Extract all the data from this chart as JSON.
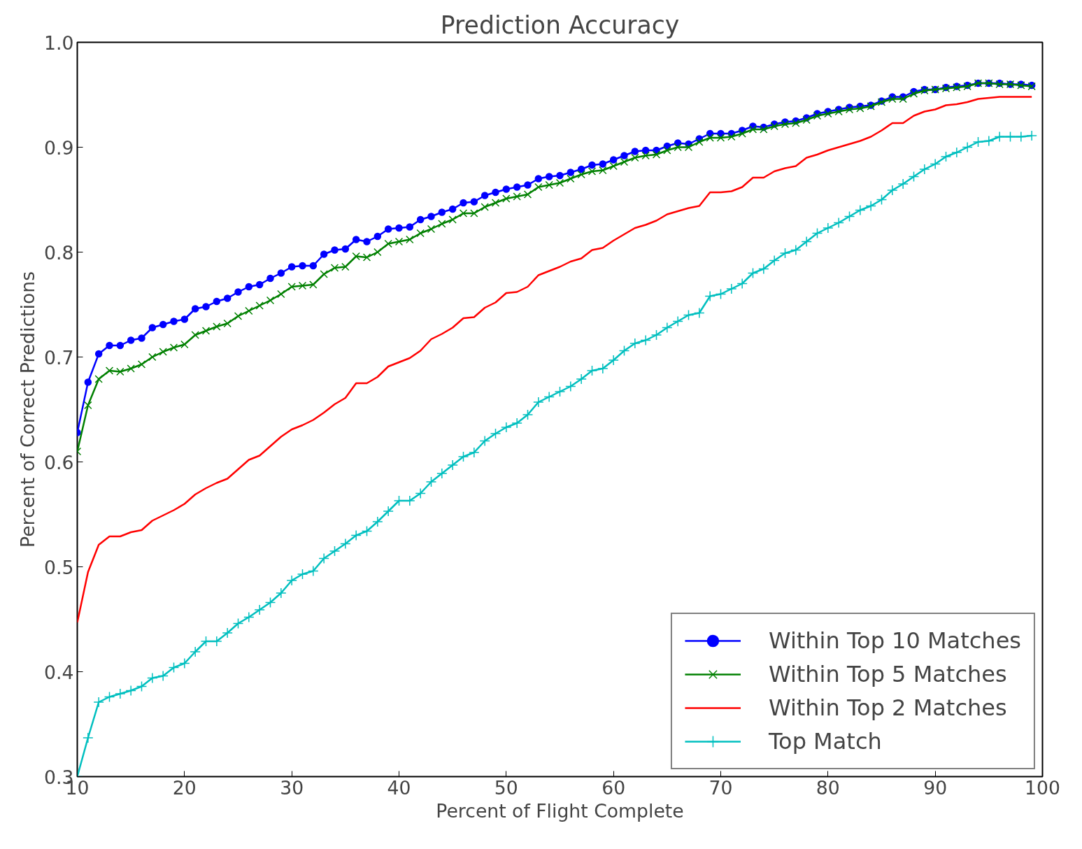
{
  "chart_data": {
    "type": "line",
    "title": "Prediction Accuracy",
    "xlabel": "Percent of Flight Complete",
    "ylabel": "Percent of Correct Predictions",
    "x": [
      10,
      11,
      12,
      13,
      14,
      15,
      16,
      17,
      18,
      19,
      20,
      21,
      22,
      23,
      24,
      25,
      26,
      27,
      28,
      29,
      30,
      31,
      32,
      33,
      34,
      35,
      36,
      37,
      38,
      39,
      40,
      41,
      42,
      43,
      44,
      45,
      46,
      47,
      48,
      49,
      50,
      51,
      52,
      53,
      54,
      55,
      56,
      57,
      58,
      59,
      60,
      61,
      62,
      63,
      64,
      65,
      66,
      67,
      68,
      69,
      70,
      71,
      72,
      73,
      74,
      75,
      76,
      77,
      78,
      79,
      80,
      81,
      82,
      83,
      84,
      85,
      86,
      87,
      88,
      89,
      90,
      91,
      92,
      93,
      94,
      95,
      96,
      97,
      98,
      99
    ],
    "series": [
      {
        "name": "Within Top 10 Matches",
        "color": "#0000ff",
        "marker": "circle",
        "values": [
          0.628,
          0.676,
          0.703,
          0.711,
          0.711,
          0.716,
          0.718,
          0.728,
          0.731,
          0.734,
          0.736,
          0.746,
          0.748,
          0.753,
          0.756,
          0.762,
          0.767,
          0.769,
          0.775,
          0.78,
          0.786,
          0.787,
          0.787,
          0.798,
          0.802,
          0.803,
          0.812,
          0.81,
          0.815,
          0.822,
          0.823,
          0.824,
          0.831,
          0.834,
          0.838,
          0.841,
          0.847,
          0.848,
          0.854,
          0.857,
          0.86,
          0.862,
          0.864,
          0.87,
          0.872,
          0.873,
          0.876,
          0.879,
          0.883,
          0.884,
          0.888,
          0.892,
          0.896,
          0.897,
          0.897,
          0.901,
          0.904,
          0.903,
          0.908,
          0.913,
          0.913,
          0.913,
          0.916,
          0.92,
          0.919,
          0.922,
          0.924,
          0.925,
          0.928,
          0.932,
          0.934,
          0.936,
          0.938,
          0.939,
          0.94,
          0.944,
          0.948,
          0.948,
          0.953,
          0.955,
          0.955,
          0.957,
          0.958,
          0.959,
          0.961,
          0.961,
          0.961,
          0.96,
          0.96,
          0.959
        ]
      },
      {
        "name": "Within Top 5 Matches",
        "color": "#008000",
        "marker": "x",
        "values": [
          0.61,
          0.654,
          0.679,
          0.687,
          0.686,
          0.689,
          0.693,
          0.7,
          0.705,
          0.709,
          0.712,
          0.721,
          0.725,
          0.729,
          0.732,
          0.739,
          0.744,
          0.749,
          0.754,
          0.76,
          0.767,
          0.768,
          0.769,
          0.779,
          0.785,
          0.786,
          0.796,
          0.795,
          0.8,
          0.808,
          0.81,
          0.812,
          0.818,
          0.822,
          0.827,
          0.831,
          0.837,
          0.837,
          0.843,
          0.847,
          0.851,
          0.853,
          0.855,
          0.862,
          0.864,
          0.866,
          0.87,
          0.874,
          0.877,
          0.878,
          0.882,
          0.886,
          0.89,
          0.892,
          0.893,
          0.897,
          0.9,
          0.9,
          0.905,
          0.909,
          0.909,
          0.91,
          0.913,
          0.917,
          0.917,
          0.92,
          0.922,
          0.923,
          0.926,
          0.93,
          0.932,
          0.934,
          0.936,
          0.937,
          0.939,
          0.943,
          0.946,
          0.946,
          0.951,
          0.954,
          0.955,
          0.956,
          0.957,
          0.958,
          0.961,
          0.961,
          0.96,
          0.96,
          0.959,
          0.958
        ]
      },
      {
        "name": "Within Top 2 Matches",
        "color": "#ff0000",
        "marker": "none",
        "values": [
          0.447,
          0.495,
          0.521,
          0.529,
          0.529,
          0.533,
          0.535,
          0.544,
          0.549,
          0.554,
          0.56,
          0.569,
          0.575,
          0.58,
          0.584,
          0.593,
          0.602,
          0.606,
          0.615,
          0.624,
          0.631,
          0.635,
          0.64,
          0.647,
          0.655,
          0.661,
          0.675,
          0.675,
          0.681,
          0.691,
          0.695,
          0.699,
          0.706,
          0.717,
          0.722,
          0.728,
          0.737,
          0.738,
          0.747,
          0.752,
          0.761,
          0.762,
          0.767,
          0.778,
          0.782,
          0.786,
          0.791,
          0.794,
          0.802,
          0.804,
          0.811,
          0.817,
          0.823,
          0.826,
          0.83,
          0.836,
          0.839,
          0.842,
          0.844,
          0.857,
          0.857,
          0.858,
          0.862,
          0.871,
          0.871,
          0.877,
          0.88,
          0.882,
          0.89,
          0.893,
          0.897,
          0.9,
          0.903,
          0.906,
          0.91,
          0.916,
          0.923,
          0.923,
          0.93,
          0.934,
          0.936,
          0.94,
          0.941,
          0.943,
          0.946,
          0.947,
          0.948,
          0.948,
          0.948,
          0.948
        ]
      },
      {
        "name": "Top Match",
        "color": "#00bfbf",
        "marker": "cross",
        "values": [
          0.3,
          0.337,
          0.371,
          0.376,
          0.379,
          0.382,
          0.386,
          0.394,
          0.396,
          0.404,
          0.408,
          0.419,
          0.429,
          0.429,
          0.437,
          0.446,
          0.452,
          0.459,
          0.466,
          0.475,
          0.487,
          0.493,
          0.496,
          0.508,
          0.515,
          0.522,
          0.53,
          0.534,
          0.543,
          0.553,
          0.563,
          0.563,
          0.57,
          0.581,
          0.589,
          0.597,
          0.605,
          0.609,
          0.62,
          0.627,
          0.633,
          0.637,
          0.645,
          0.657,
          0.662,
          0.667,
          0.672,
          0.679,
          0.687,
          0.689,
          0.697,
          0.706,
          0.713,
          0.716,
          0.721,
          0.728,
          0.734,
          0.74,
          0.742,
          0.758,
          0.76,
          0.765,
          0.77,
          0.78,
          0.784,
          0.792,
          0.799,
          0.802,
          0.81,
          0.818,
          0.823,
          0.828,
          0.834,
          0.84,
          0.844,
          0.85,
          0.859,
          0.865,
          0.872,
          0.879,
          0.884,
          0.891,
          0.895,
          0.9,
          0.905,
          0.906,
          0.91,
          0.91,
          0.91,
          0.911
        ]
      }
    ],
    "xlim": [
      10,
      100
    ],
    "ylim": [
      0.3,
      1.0
    ],
    "xticks": [
      10,
      20,
      30,
      40,
      50,
      60,
      70,
      80,
      90,
      100
    ],
    "yticks": [
      0.3,
      0.4,
      0.5,
      0.6,
      0.7,
      0.8,
      0.9,
      {
        "value": 1.0,
        "label": "1.0"
      }
    ],
    "legend": "bottom right",
    "grid": false,
    "line_style": "solid"
  }
}
